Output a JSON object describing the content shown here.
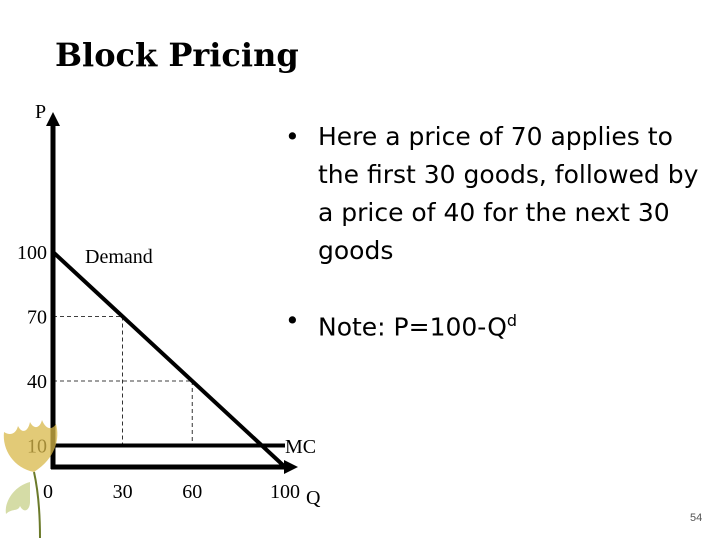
{
  "slide": {
    "title": "Block Pricing",
    "page_number": "54",
    "bullets": [
      {
        "text": "Here a price of 70 applies to the first 30 goods, followed by a price of 40 for the next 30 goods"
      },
      {
        "text_prefix": "Note: P=100-Q",
        "superscript": "d"
      }
    ]
  },
  "chart_data": {
    "type": "line",
    "xlabel": "Q",
    "ylabel": "P",
    "xlim": [
      0,
      100
    ],
    "ylim": [
      0,
      100
    ],
    "x_ticks": [
      {
        "value": 0,
        "label": "0"
      },
      {
        "value": 30,
        "label": "30"
      },
      {
        "value": 60,
        "label": "60"
      },
      {
        "value": 100,
        "label": "100"
      }
    ],
    "y_ticks": [
      {
        "value": 100,
        "label": "100"
      },
      {
        "value": 70,
        "label": "70"
      },
      {
        "value": 40,
        "label": "40"
      },
      {
        "value": 10,
        "label": "10"
      }
    ],
    "series": [
      {
        "name": "Demand",
        "x": [
          0,
          100
        ],
        "y": [
          100,
          0
        ],
        "style": "solid",
        "color": "#000000"
      },
      {
        "name": "MC",
        "x": [
          0,
          100
        ],
        "y": [
          10,
          10
        ],
        "style": "solid",
        "color": "#000000"
      }
    ],
    "guides": [
      {
        "x": [
          0,
          30
        ],
        "y": [
          70,
          70
        ]
      },
      {
        "x": [
          30,
          30
        ],
        "y": [
          70,
          10
        ]
      },
      {
        "x": [
          0,
          60
        ],
        "y": [
          40,
          40
        ]
      },
      {
        "x": [
          60,
          60
        ],
        "y": [
          40,
          10
        ]
      }
    ],
    "guide_style": "dashed",
    "grid": false,
    "colors": {
      "line": "#000000",
      "guide": "#000000",
      "leaf": "#d8b84a"
    }
  }
}
